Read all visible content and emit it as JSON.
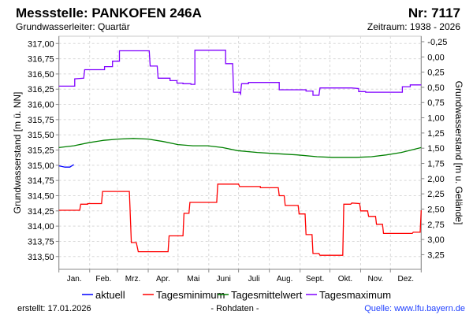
{
  "header": {
    "title": "Messstelle: PANKOFEN  246A",
    "number": "Nr: 7117",
    "aquifer": "Grundwasserleiter: Quartär",
    "period": "Zeitraum: 1938 - 2026"
  },
  "footer": {
    "created": "erstellt:  17.01.2026",
    "raw": "- Rohdaten -",
    "source": "Quelle: www.lfu.bayern.de"
  },
  "chart_data": {
    "type": "line",
    "ylabel": "Grundwasserstand [m ü. NN]",
    "y2label": "Grundwasserstand [m u. Gelände]",
    "ylim": [
      313.29,
      317.12
    ],
    "yticks": [
      "317,00",
      "316,75",
      "316,50",
      "316,25",
      "316,00",
      "315,75",
      "315,50",
      "315,25",
      "315,00",
      "314,75",
      "314,50",
      "314,25",
      "314,00",
      "313,75",
      "313,50"
    ],
    "ytick_values": [
      317.0,
      316.75,
      316.5,
      316.25,
      316.0,
      315.75,
      315.5,
      315.25,
      315.0,
      314.75,
      314.5,
      314.25,
      314.0,
      313.75,
      313.5
    ],
    "ground_level": 316.78,
    "y2ticks": [
      "-0,25",
      "0,00",
      "0,25",
      "0,50",
      "0,75",
      "1,00",
      "1,25",
      "1,50",
      "1,75",
      "2,00",
      "2,25",
      "2,50",
      "2,75",
      "3,00",
      "3,25"
    ],
    "y2tick_values": [
      -0.25,
      0,
      0.25,
      0.5,
      0.75,
      1,
      1.25,
      1.5,
      1.75,
      2,
      2.25,
      2.5,
      2.75,
      3,
      3.25
    ],
    "xlim_days": [
      0,
      365
    ],
    "months": [
      "Jan.",
      "Feb.",
      "Mrz.",
      "Apr.",
      "Mai",
      "Juni",
      "Juli",
      "Aug.",
      "Sept.",
      "Okt.",
      "Nov.",
      "Dez."
    ],
    "month_starts": [
      0,
      31,
      59,
      90,
      120,
      151,
      181,
      212,
      243,
      273,
      304,
      334,
      365
    ],
    "grid": true,
    "legend_position": "bottom",
    "series": [
      {
        "name": "aktuell",
        "color": "#0000ff",
        "points": [
          [
            0,
            314.99
          ],
          [
            3,
            314.98
          ],
          [
            6,
            314.97
          ],
          [
            11,
            314.97
          ],
          [
            13,
            314.99
          ],
          [
            15,
            315.01
          ]
        ]
      },
      {
        "name": "Tagesminimum",
        "color": "#ff0000",
        "points": [
          [
            0,
            314.26
          ],
          [
            21,
            314.26
          ],
          [
            22,
            314.36
          ],
          [
            29,
            314.36
          ],
          [
            29,
            314.37
          ],
          [
            43,
            314.37
          ],
          [
            44,
            314.57
          ],
          [
            71,
            314.57
          ],
          [
            73,
            313.73
          ],
          [
            78,
            313.73
          ],
          [
            80,
            313.58
          ],
          [
            110,
            313.58
          ],
          [
            111,
            313.84
          ],
          [
            125,
            313.84
          ],
          [
            126,
            314.21
          ],
          [
            131,
            314.21
          ],
          [
            132,
            314.39
          ],
          [
            159,
            314.39
          ],
          [
            160,
            314.69
          ],
          [
            181,
            314.69
          ],
          [
            182,
            314.65
          ],
          [
            203,
            314.65
          ],
          [
            203,
            314.63
          ],
          [
            221,
            314.63
          ],
          [
            222,
            314.5
          ],
          [
            227,
            314.5
          ],
          [
            228,
            314.34
          ],
          [
            241,
            314.34
          ],
          [
            242,
            314.2
          ],
          [
            248,
            314.2
          ],
          [
            249,
            313.86
          ],
          [
            255,
            313.86
          ],
          [
            256,
            313.55
          ],
          [
            262,
            313.55
          ],
          [
            263,
            313.52
          ],
          [
            286,
            313.52
          ],
          [
            287,
            314.36
          ],
          [
            294,
            314.36
          ],
          [
            295,
            314.38
          ],
          [
            303,
            314.37
          ],
          [
            304,
            314.25
          ],
          [
            311,
            314.25
          ],
          [
            312,
            314.16
          ],
          [
            319,
            314.16
          ],
          [
            320,
            314.03
          ],
          [
            326,
            314.03
          ],
          [
            327,
            313.88
          ],
          [
            356,
            313.88
          ],
          [
            357,
            313.9
          ],
          [
            364,
            313.9
          ],
          [
            365,
            314.26
          ]
        ]
      },
      {
        "name": "Tagesmittelwert",
        "color": "#008000",
        "points": [
          [
            0,
            315.29
          ],
          [
            15,
            315.32
          ],
          [
            30,
            315.37
          ],
          [
            45,
            315.41
          ],
          [
            60,
            315.43
          ],
          [
            75,
            315.44
          ],
          [
            90,
            315.43
          ],
          [
            105,
            315.39
          ],
          [
            120,
            315.34
          ],
          [
            135,
            315.32
          ],
          [
            150,
            315.32
          ],
          [
            165,
            315.29
          ],
          [
            180,
            315.24
          ],
          [
            200,
            315.21
          ],
          [
            220,
            315.19
          ],
          [
            240,
            315.17
          ],
          [
            260,
            315.14
          ],
          [
            275,
            315.13
          ],
          [
            300,
            315.13
          ],
          [
            315,
            315.14
          ],
          [
            330,
            315.17
          ],
          [
            345,
            315.21
          ],
          [
            365,
            315.29
          ]
        ]
      },
      {
        "name": "Tagesmaximum",
        "color": "#8000ff",
        "points": [
          [
            0,
            316.3
          ],
          [
            16,
            316.3
          ],
          [
            16,
            316.42
          ],
          [
            25,
            316.43
          ],
          [
            26,
            316.57
          ],
          [
            46,
            316.57
          ],
          [
            46,
            316.62
          ],
          [
            54,
            316.62
          ],
          [
            54,
            316.71
          ],
          [
            61,
            316.71
          ],
          [
            61,
            316.88
          ],
          [
            91,
            316.88
          ],
          [
            92,
            316.63
          ],
          [
            99,
            316.63
          ],
          [
            100,
            316.43
          ],
          [
            112,
            316.43
          ],
          [
            112,
            316.39
          ],
          [
            119,
            316.39
          ],
          [
            119,
            316.35
          ],
          [
            125,
            316.35
          ],
          [
            125,
            316.34
          ],
          [
            133,
            316.34
          ],
          [
            133,
            316.33
          ],
          [
            137,
            316.33
          ],
          [
            137,
            316.89
          ],
          [
            168,
            316.89
          ],
          [
            168,
            316.67
          ],
          [
            175,
            316.67
          ],
          [
            176,
            316.2
          ],
          [
            182,
            316.2
          ],
          [
            183,
            316.17
          ],
          [
            184,
            316.34
          ],
          [
            191,
            316.34
          ],
          [
            191,
            316.36
          ],
          [
            222,
            316.36
          ],
          [
            222,
            316.24
          ],
          [
            249,
            316.24
          ],
          [
            249,
            316.22
          ],
          [
            256,
            316.22
          ],
          [
            256,
            316.15
          ],
          [
            262,
            316.15
          ],
          [
            263,
            316.27
          ],
          [
            295,
            316.27
          ],
          [
            302,
            316.26
          ],
          [
            302,
            316.21
          ],
          [
            309,
            316.21
          ],
          [
            309,
            316.2
          ],
          [
            346,
            316.2
          ],
          [
            346,
            316.29
          ],
          [
            354,
            316.29
          ],
          [
            354,
            316.32
          ],
          [
            365,
            316.32
          ]
        ]
      }
    ]
  }
}
